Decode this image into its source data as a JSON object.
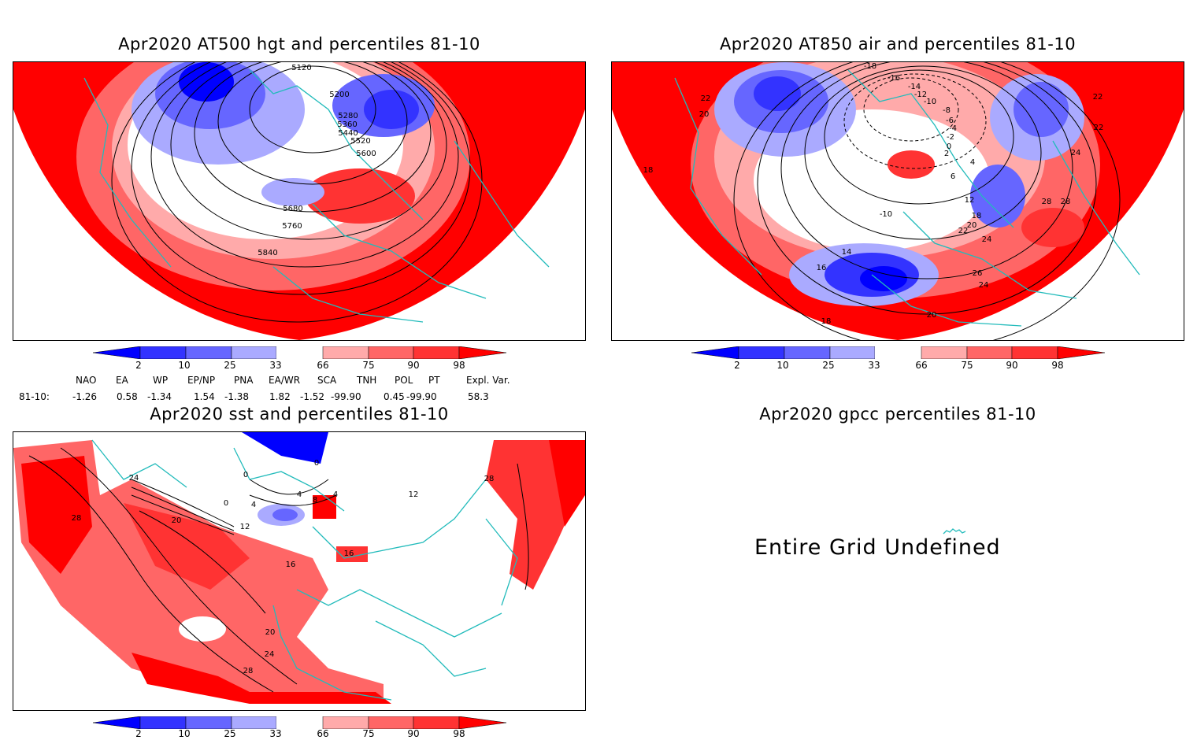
{
  "panels": {
    "hgt": {
      "title": "Apr2020 AT500 hgt and percentiles 81-10",
      "contour_labels": [
        "5120",
        "5200",
        "5280",
        "5360",
        "5440",
        "5520",
        "5600",
        "5680",
        "5760",
        "5840"
      ]
    },
    "air": {
      "title": "Apr2020 AT850 air and percentiles 81-10",
      "contour_labels": [
        "-18",
        "-16",
        "-14",
        "-12",
        "-10",
        "-8",
        "-6",
        "-4",
        "-2",
        "0",
        "2",
        "4",
        "6",
        "8",
        "10",
        "12",
        "14",
        "16",
        "18",
        "20",
        "22",
        "24",
        "26",
        "28"
      ]
    },
    "sst": {
      "title": "Apr2020 sst and percentiles 81-10",
      "contour_labels": [
        "0",
        "4",
        "8",
        "12",
        "16",
        "20",
        "24",
        "28"
      ]
    },
    "gpcc": {
      "title": "Apr2020 gpcc percentiles 81-10",
      "message": "Entire Grid Undefined"
    }
  },
  "colorbar": {
    "ticks": [
      "2",
      "10",
      "25",
      "33",
      "66",
      "75",
      "90",
      "98"
    ],
    "colors": [
      "#0000ff",
      "#3333ff",
      "#6666ff",
      "#aaaaff",
      "#ffffff",
      "#ffaaaa",
      "#ff6666",
      "#ff3333",
      "#ff0000"
    ]
  },
  "indices": {
    "headers": [
      "NAO",
      "EA",
      "WP",
      "EP/NP",
      "PNA",
      "EA/WR",
      "SCA",
      "TNH",
      "POL",
      "PT",
      "Expl. Var."
    ],
    "row_label": "81-10:",
    "values": [
      "-1.26",
      "0.58",
      "-1.34",
      "1.54",
      "-1.38",
      "1.82",
      "-1.52",
      "-99.90",
      "0.45",
      "-99.90",
      "58.3"
    ]
  }
}
